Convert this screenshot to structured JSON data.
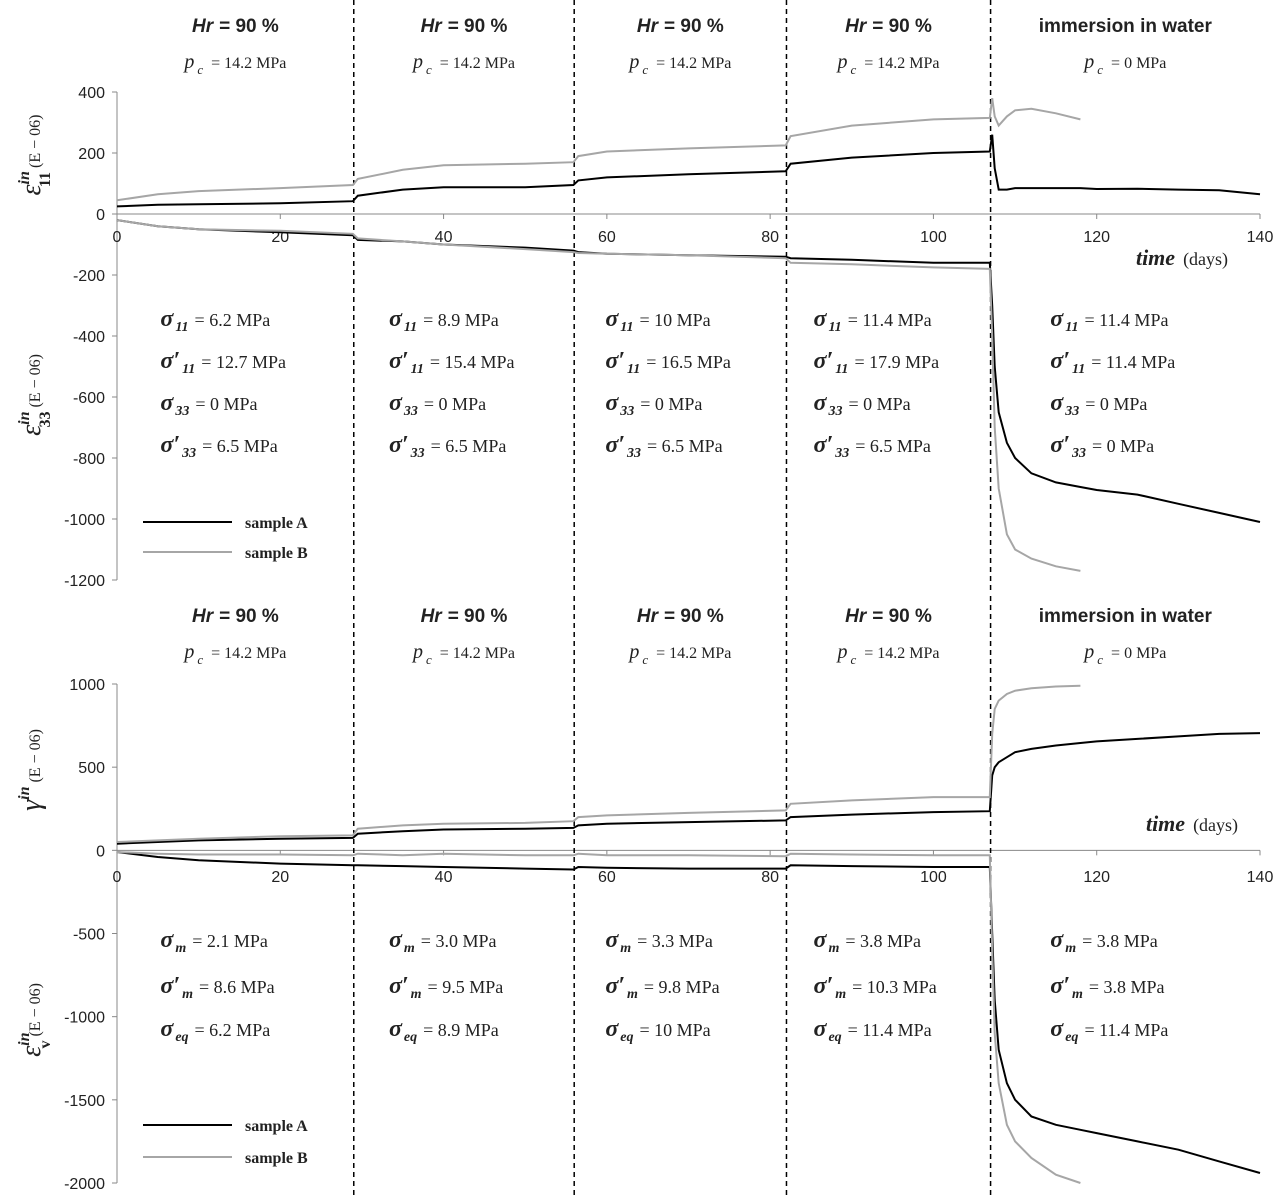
{
  "chart_data": [
    {
      "type": "line",
      "x": [
        0,
        5,
        10,
        20,
        28.9,
        29.5,
        35,
        40,
        50,
        55.9,
        56.5,
        60,
        70,
        81.9,
        82.5,
        90,
        100,
        106.9,
        107.2,
        107.5,
        108,
        109,
        110,
        112,
        115,
        118,
        120,
        125,
        130,
        135,
        140
      ],
      "xlim": [
        0,
        140
      ],
      "xticks": [
        0,
        20,
        40,
        60,
        80,
        100,
        120,
        140
      ],
      "ylim": [
        -1200,
        400
      ],
      "yticks": [
        -1200,
        -1000,
        -800,
        -600,
        -400,
        -200,
        0,
        200,
        400
      ],
      "series": [
        {
          "name": "sample A",
          "color": "#000000",
          "values": [
            25,
            30,
            32,
            35,
            42,
            60,
            80,
            88,
            88,
            95,
            110,
            120,
            130,
            140,
            165,
            185,
            200,
            205,
            260,
            150,
            80,
            80,
            85,
            85,
            85,
            85,
            82,
            83,
            80,
            78,
            65
          ],
          "lower_values": [
            -20,
            -40,
            -50,
            -60,
            -70,
            -85,
            -90,
            -100,
            -110,
            -120,
            -125,
            -130,
            -135,
            -140,
            -145,
            -150,
            -160,
            -160,
            -300,
            -500,
            -650,
            -750,
            -800,
            -850,
            -880,
            -895,
            -905,
            -920,
            -950,
            -980,
            -1010
          ]
        },
        {
          "name": "sample B",
          "color": "#a6a6a6",
          "values": [
            45,
            65,
            75,
            85,
            95,
            115,
            145,
            160,
            165,
            170,
            190,
            205,
            215,
            225,
            255,
            290,
            310,
            315,
            380,
            320,
            290,
            320,
            340,
            345,
            330,
            310,
            null,
            null,
            null,
            null,
            null
          ],
          "lower_values": [
            -20,
            -40,
            -50,
            -55,
            -65,
            -80,
            -90,
            -100,
            -115,
            -125,
            -128,
            -130,
            -135,
            -145,
            -160,
            -165,
            -175,
            -180,
            -400,
            -700,
            -900,
            -1050,
            -1100,
            -1130,
            -1155,
            -1170,
            null,
            null,
            null,
            null,
            null
          ]
        }
      ],
      "stage_boundaries": [
        29,
        56,
        82,
        107
      ],
      "y_labels": [
        {
          "symbol": "ε",
          "sup": "in",
          "sub": "11",
          "unit": "(E − 06)"
        },
        {
          "symbol": "ε",
          "sup": "in",
          "sub": "33",
          "unit": "(E − 06)"
        }
      ],
      "x_label": {
        "name": "time",
        "unit": "(days)"
      },
      "stages": [
        {
          "header": [
            "Hr",
            "= 90 %"
          ],
          "pc": [
            "p",
            "c",
            "= 14.2 MPa"
          ],
          "stresses": [
            [
              "σ",
              "11",
              "= 6.2 MPa"
            ],
            [
              "σ′",
              "11",
              "= 12.7 MPa"
            ],
            [
              "σ",
              "33",
              "= 0 MPa"
            ],
            [
              "σ′",
              "33",
              "= 6.5 MPa"
            ]
          ]
        },
        {
          "header": [
            "Hr",
            "= 90 %"
          ],
          "pc": [
            "p",
            "c",
            "= 14.2 MPa"
          ],
          "stresses": [
            [
              "σ",
              "11",
              "= 8.9 MPa"
            ],
            [
              "σ′",
              "11",
              "= 15.4 MPa"
            ],
            [
              "σ",
              "33",
              "= 0 MPa"
            ],
            [
              "σ′",
              "33",
              "= 6.5 MPa"
            ]
          ]
        },
        {
          "header": [
            "Hr",
            "= 90 %"
          ],
          "pc": [
            "p",
            "c",
            "= 14.2 MPa"
          ],
          "stresses": [
            [
              "σ",
              "11",
              "= 10 MPa"
            ],
            [
              "σ′",
              "11",
              "= 16.5 MPa"
            ],
            [
              "σ",
              "33",
              "= 0 MPa"
            ],
            [
              "σ′",
              "33",
              "= 6.5 MPa"
            ]
          ]
        },
        {
          "header": [
            "Hr",
            "= 90 %"
          ],
          "pc": [
            "p",
            "c",
            "= 14.2 MPa"
          ],
          "stresses": [
            [
              "σ",
              "11",
              "= 11.4 MPa"
            ],
            [
              "σ′",
              "11",
              "= 17.9 MPa"
            ],
            [
              "σ",
              "33",
              "= 0 MPa"
            ],
            [
              "σ′",
              "33",
              "= 6.5 MPa"
            ]
          ]
        },
        {
          "header": [
            "immersion in water"
          ],
          "pc": [
            "p",
            "c",
            "= 0 MPa"
          ],
          "stresses": [
            [
              "σ",
              "11",
              "= 11.4 MPa"
            ],
            [
              "σ′",
              "11",
              "= 11.4 MPa"
            ],
            [
              "σ",
              "33",
              "= 0 MPa"
            ],
            [
              "σ′",
              "33",
              "= 0 MPa"
            ]
          ]
        }
      ]
    },
    {
      "type": "line",
      "x": [
        0,
        5,
        10,
        20,
        28.9,
        29.5,
        35,
        40,
        50,
        55.9,
        56.5,
        60,
        70,
        81.9,
        82.5,
        90,
        100,
        106.9,
        107.2,
        107.5,
        108,
        109,
        110,
        112,
        115,
        118,
        120,
        125,
        130,
        135,
        140
      ],
      "xlim": [
        0,
        140
      ],
      "xticks": [
        0,
        20,
        40,
        60,
        80,
        100,
        120,
        140
      ],
      "ylim": [
        -2000,
        1000
      ],
      "yticks": [
        -2000,
        -1500,
        -1000,
        -500,
        0,
        500,
        1000
      ],
      "series": [
        {
          "name": "sample A",
          "color": "#000000",
          "values": [
            40,
            50,
            60,
            70,
            75,
            100,
            115,
            125,
            130,
            135,
            150,
            160,
            170,
            180,
            200,
            215,
            230,
            235,
            450,
            500,
            530,
            560,
            590,
            610,
            630,
            645,
            655,
            670,
            685,
            700,
            705
          ],
          "lower_values": [
            -10,
            -40,
            -60,
            -80,
            -90,
            -90,
            -95,
            -100,
            -110,
            -115,
            -100,
            -105,
            -110,
            -110,
            -90,
            -95,
            -100,
            -100,
            -500,
            -900,
            -1200,
            -1400,
            -1500,
            -1600,
            -1650,
            -1680,
            -1700,
            -1750,
            -1800,
            -1870,
            -1940
          ]
        },
        {
          "name": "sample B",
          "color": "#a6a6a6",
          "values": [
            50,
            60,
            70,
            85,
            90,
            130,
            150,
            160,
            165,
            175,
            200,
            210,
            225,
            240,
            280,
            300,
            320,
            320,
            700,
            850,
            900,
            940,
            960,
            975,
            985,
            990,
            null,
            null,
            null,
            null,
            null
          ],
          "lower_values": [
            -10,
            -20,
            -25,
            -25,
            -30,
            -20,
            -30,
            -20,
            -30,
            -30,
            -20,
            -30,
            -30,
            -35,
            -20,
            -25,
            -30,
            -30,
            -600,
            -1100,
            -1400,
            -1650,
            -1750,
            -1850,
            -1950,
            -2000,
            null,
            null,
            null,
            null,
            null
          ]
        }
      ],
      "stage_boundaries": [
        29,
        56,
        82,
        107
      ],
      "y_labels": [
        {
          "symbol": "γ",
          "sup": "in",
          "unit": "(E − 06)"
        },
        {
          "symbol": "ε",
          "sup": "in",
          "sub": "v",
          "unit": "(E − 06)"
        }
      ],
      "x_label": {
        "name": "time",
        "unit": "(days)"
      },
      "stages": [
        {
          "header": [
            "Hr",
            "= 90 %"
          ],
          "pc": [
            "p",
            "c",
            "= 14.2 MPa"
          ],
          "stresses": [
            [
              "σ",
              "m",
              "= 2.1 MPa"
            ],
            [
              "σ′",
              "m",
              "= 8.6 MPa"
            ],
            [
              "σ",
              "eq",
              "= 6.2 MPa"
            ]
          ]
        },
        {
          "header": [
            "Hr",
            "= 90 %"
          ],
          "pc": [
            "p",
            "c",
            "= 14.2 MPa"
          ],
          "stresses": [
            [
              "σ",
              "m",
              "= 3.0 MPa"
            ],
            [
              "σ′",
              "m",
              "= 9.5 MPa"
            ],
            [
              "σ",
              "eq",
              "= 8.9 MPa"
            ]
          ]
        },
        {
          "header": [
            "Hr",
            "= 90 %"
          ],
          "pc": [
            "p",
            "c",
            "= 14.2 MPa"
          ],
          "stresses": [
            [
              "σ",
              "m",
              "= 3.3 MPa"
            ],
            [
              "σ′",
              "m",
              "= 9.8 MPa"
            ],
            [
              "σ",
              "eq",
              "= 10 MPa"
            ]
          ]
        },
        {
          "header": [
            "Hr",
            "= 90 %"
          ],
          "pc": [
            "p",
            "c",
            "= 14.2 MPa"
          ],
          "stresses": [
            [
              "σ",
              "m",
              "= 3.8 MPa"
            ],
            [
              "σ′",
              "m",
              "= 10.3 MPa"
            ],
            [
              "σ",
              "eq",
              "= 11.4 MPa"
            ]
          ]
        },
        {
          "header": [
            "immersion in water"
          ],
          "pc": [
            "p",
            "c",
            "= 0 MPa"
          ],
          "stresses": [
            [
              "σ",
              "m",
              "= 3.8 MPa"
            ],
            [
              "σ′",
              "m",
              "= 3.8 MPa"
            ],
            [
              "σ",
              "eq",
              "= 11.4 MPa"
            ]
          ]
        }
      ]
    }
  ]
}
